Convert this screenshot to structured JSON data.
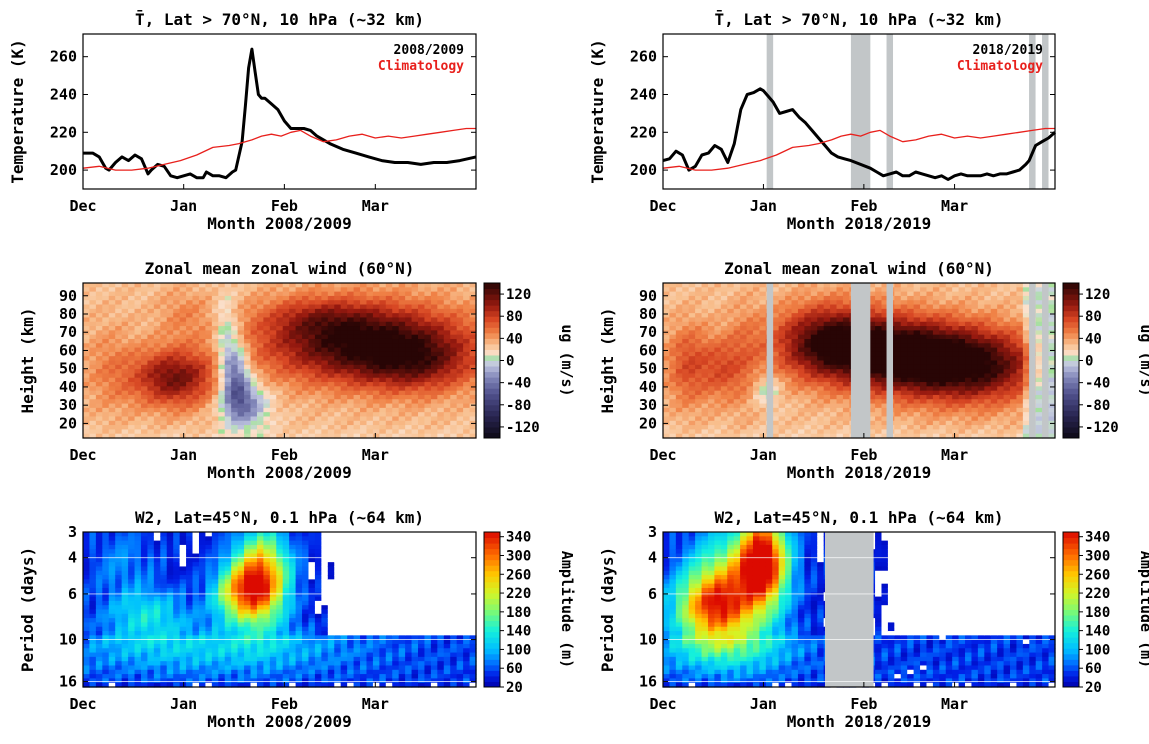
{
  "figure": {
    "panels": [
      {
        "id": "temp-2008",
        "type": "line",
        "title": "T̄, Lat > 70°N, 10 hPa (~32 km)",
        "xlabel": "Month 2008/2009",
        "ylabel": "Temperature (K)",
        "x_ticks": [
          "Dec",
          "Jan",
          "Feb",
          "Mar"
        ],
        "y_ticks": [
          200,
          220,
          240,
          260
        ],
        "ylim": [
          190,
          272
        ],
        "xlim_days": [
          0,
          121
        ],
        "legend": [
          {
            "label": "2008/2009",
            "color": "#000000"
          },
          {
            "label": "Climatology",
            "color": "#e8201c"
          }
        ],
        "series": [
          {
            "name": "2008/2009",
            "color": "#000000",
            "x": [
              0,
              3,
              5,
              7,
              8,
              10,
              12,
              14,
              16,
              18,
              20,
              21,
              23,
              25,
              27,
              29,
              31,
              33,
              35,
              37,
              38,
              40,
              42,
              44,
              46,
              47,
              49,
              50,
              51,
              52,
              53,
              54,
              55,
              56,
              58,
              60,
              62,
              64,
              66,
              68,
              70,
              72,
              76,
              80,
              84,
              88,
              92,
              96,
              100,
              104,
              108,
              112,
              116,
              121
            ],
            "y": [
              209,
              209,
              207,
              201,
              200,
              204,
              207,
              205,
              208,
              206,
              198,
              200,
              203,
              202,
              197,
              196,
              197,
              198,
              196,
              196,
              199,
              197,
              197,
              196,
              199,
              200,
              215,
              234,
              254,
              264,
              252,
              240,
              238,
              238,
              235,
              232,
              226,
              222,
              222,
              222,
              221,
              218,
              214,
              211,
              209,
              207,
              205,
              204,
              204,
              203,
              204,
              204,
              205,
              207
            ]
          },
          {
            "name": "Climatology",
            "color": "#e8201c",
            "x": [
              0,
              5,
              10,
              15,
              20,
              25,
              30,
              35,
              40,
              45,
              48,
              52,
              55,
              58,
              61,
              64,
              67,
              70,
              74,
              78,
              82,
              86,
              90,
              94,
              98,
              102,
              106,
              110,
              114,
              118,
              121
            ],
            "y": [
              201,
              202,
              200,
              200,
              201,
              203,
              205,
              208,
              212,
              213,
              214,
              216,
              218,
              219,
              218,
              220,
              221,
              218,
              215,
              216,
              218,
              219,
              217,
              218,
              217,
              218,
              219,
              220,
              221,
              222,
              222
            ]
          }
        ]
      },
      {
        "id": "temp-2018",
        "type": "line",
        "title": "T̄, Lat > 70°N, 10 hPa (~32 km)",
        "xlabel": "Month 2018/2019",
        "ylabel": "Temperature (K)",
        "x_ticks": [
          "Dec",
          "Jan",
          "Feb",
          "Mar"
        ],
        "y_ticks": [
          200,
          220,
          240,
          260
        ],
        "ylim": [
          190,
          272
        ],
        "xlim_days": [
          0,
          121
        ],
        "legend": [
          {
            "label": "2018/2019",
            "color": "#000000"
          },
          {
            "label": "Climatology",
            "color": "#e8201c"
          }
        ],
        "gaps": [
          [
            32,
            34
          ],
          [
            58,
            64
          ],
          [
            69,
            71
          ],
          [
            113,
            115
          ],
          [
            117,
            119
          ]
        ],
        "series": [
          {
            "name": "2018/2019",
            "color": "#000000",
            "x": [
              0,
              2,
              4,
              6,
              8,
              10,
              12,
              14,
              16,
              18,
              20,
              22,
              24,
              26,
              28,
              30,
              31,
              32,
              34,
              36,
              38,
              40,
              42,
              44,
              46,
              48,
              50,
              52,
              54,
              56,
              58,
              64,
              66,
              68,
              70,
              72,
              74,
              76,
              78,
              80,
              82,
              84,
              86,
              88,
              90,
              92,
              94,
              96,
              98,
              100,
              102,
              104,
              106,
              108,
              110,
              112,
              113,
              115,
              117,
              119,
              121
            ],
            "y": [
              205,
              206,
              210,
              208,
              200,
              202,
              208,
              209,
              213,
              211,
              204,
              214,
              232,
              240,
              241,
              243,
              242,
              240,
              236,
              230,
              231,
              232,
              228,
              225,
              221,
              217,
              213,
              209,
              207,
              206,
              205,
              201,
              199,
              197,
              198,
              199,
              197,
              197,
              199,
              198,
              197,
              196,
              197,
              195,
              197,
              198,
              197,
              197,
              197,
              198,
              197,
              198,
              198,
              199,
              200,
              203,
              205,
              213,
              215,
              217,
              220
            ]
          },
          {
            "name": "Climatology",
            "color": "#e8201c",
            "x": [
              0,
              5,
              10,
              15,
              20,
              25,
              30,
              35,
              40,
              45,
              48,
              52,
              55,
              58,
              61,
              64,
              67,
              70,
              74,
              78,
              82,
              86,
              90,
              94,
              98,
              102,
              106,
              110,
              114,
              118,
              121
            ],
            "y": [
              201,
              202,
              200,
              200,
              201,
              203,
              205,
              208,
              212,
              213,
              214,
              216,
              218,
              219,
              218,
              220,
              221,
              218,
              215,
              216,
              218,
              219,
              217,
              218,
              217,
              218,
              219,
              220,
              221,
              222,
              222
            ]
          }
        ]
      },
      {
        "id": "wind-2008",
        "type": "heatmap",
        "title": "Zonal mean zonal wind (60°N)",
        "xlabel": "Month 2008/2009",
        "ylabel": "Height (km)",
        "x_ticks": [
          "Dec",
          "Jan",
          "Feb",
          "Mar"
        ],
        "y_ticks": [
          20,
          30,
          40,
          50,
          60,
          70,
          80,
          90
        ],
        "ylim": [
          12,
          97
        ],
        "xlim_days": [
          0,
          121
        ],
        "colorbar": {
          "label": "ug (m/s)",
          "ticks": [
            -120,
            -80,
            -40,
            0,
            40,
            80,
            120
          ],
          "range": [
            -140,
            140
          ]
        },
        "features": [
          {
            "x": 8,
            "y": 50,
            "sx": 6,
            "sy": 18,
            "a": 20
          },
          {
            "x": 28,
            "y": 45,
            "sx": 9,
            "sy": 11,
            "a": 85
          },
          {
            "x": 31,
            "y": 80,
            "sx": 6,
            "sy": 10,
            "a": 18
          },
          {
            "x": 47,
            "y": 46,
            "sx": 3,
            "sy": 13,
            "a": -75
          },
          {
            "x": 50,
            "y": 30,
            "sx": 5,
            "sy": 9,
            "a": -60
          },
          {
            "x": 44,
            "y": 68,
            "sx": 2.5,
            "sy": 16,
            "a": -35
          },
          {
            "x": 87,
            "y": 64,
            "sx": 22,
            "sy": 15,
            "a": 115
          },
          {
            "x": 103,
            "y": 52,
            "sx": 12,
            "sy": 11,
            "a": 45
          },
          {
            "x": 72,
            "y": 78,
            "sx": 12,
            "sy": 8,
            "a": 30
          }
        ]
      },
      {
        "id": "wind-2018",
        "type": "heatmap",
        "title": "Zonal mean zonal wind (60°N)",
        "xlabel": "Month 2018/2019",
        "ylabel": "Height (km)",
        "x_ticks": [
          "Dec",
          "Jan",
          "Feb",
          "Mar"
        ],
        "y_ticks": [
          20,
          30,
          40,
          50,
          60,
          70,
          80,
          90
        ],
        "ylim": [
          12,
          97
        ],
        "xlim_days": [
          0,
          121
        ],
        "colorbar": {
          "label": "ug (m/s)",
          "ticks": [
            -120,
            -80,
            -40,
            0,
            40,
            80,
            120
          ],
          "range": [
            -140,
            140
          ]
        },
        "gaps": [
          [
            32,
            34
          ],
          [
            58,
            64
          ],
          [
            69,
            71
          ],
          [
            113,
            115
          ],
          [
            117,
            119
          ]
        ],
        "features": [
          {
            "x": 8,
            "y": 52,
            "sx": 5,
            "sy": 16,
            "a": 45
          },
          {
            "x": 18,
            "y": 50,
            "sx": 4,
            "sy": 12,
            "a": 35
          },
          {
            "x": 25,
            "y": 55,
            "sx": 4,
            "sy": 20,
            "a": 25
          },
          {
            "x": 32,
            "y": 38,
            "sx": 3,
            "sy": 6,
            "a": -30
          },
          {
            "x": 52,
            "y": 64,
            "sx": 12,
            "sy": 14,
            "a": 115
          },
          {
            "x": 75,
            "y": 57,
            "sx": 13,
            "sy": 14,
            "a": 115
          },
          {
            "x": 97,
            "y": 52,
            "sx": 14,
            "sy": 14,
            "a": 105
          },
          {
            "x": 118,
            "y": 48,
            "sx": 3,
            "sy": 20,
            "a": -40
          }
        ]
      },
      {
        "id": "w2-2008",
        "type": "heatmap",
        "title": "W2, Lat=45°N, 0.1 hPa (~64 km)",
        "xlabel": "Month 2008/2009",
        "ylabel": "Period (days)",
        "x_ticks": [
          "Dec",
          "Jan",
          "Feb",
          "Mar"
        ],
        "y_ticks": [
          3,
          4,
          6,
          10,
          16
        ],
        "ylim": [
          3,
          17
        ],
        "xlim_days": [
          0,
          121
        ],
        "colorbar": {
          "label": "Amplitude (m)",
          "ticks": [
            20,
            60,
            100,
            140,
            180,
            220,
            260,
            300,
            340
          ],
          "range": [
            20,
            350
          ]
        },
        "features": [
          {
            "x": 55,
            "y": 5.0,
            "sx": 6,
            "sy": 0.35,
            "a": 260
          },
          {
            "x": 48,
            "y": 6.0,
            "sx": 6,
            "sy": 0.22,
            "a": 160
          },
          {
            "x": 20,
            "y": 7.5,
            "sx": 9,
            "sy": 0.2,
            "a": 80
          },
          {
            "x": 40,
            "y": 11,
            "sx": 30,
            "sy": 0.2,
            "a": 60
          },
          {
            "x": 12,
            "y": 4.2,
            "sx": 8,
            "sy": 0.3,
            "a": 40
          }
        ]
      },
      {
        "id": "w2-2018",
        "type": "heatmap",
        "title": "W2, Lat=45°N, 0.1 hPa (~64 km)",
        "xlabel": "Month 2018/2019",
        "ylabel": "Period (days)",
        "x_ticks": [
          "Dec",
          "Jan",
          "Feb",
          "Mar"
        ],
        "y_ticks": [
          3,
          4,
          6,
          10,
          16
        ],
        "ylim": [
          3,
          17
        ],
        "xlim_days": [
          0,
          121
        ],
        "colorbar": {
          "label": "Amplitude (m)",
          "ticks": [
            20,
            60,
            100,
            140,
            180,
            220,
            260,
            300,
            340
          ],
          "range": [
            20,
            350
          ]
        },
        "gaps": [
          [
            50,
            65
          ]
        ],
        "features": [
          {
            "x": 31,
            "y": 4.0,
            "sx": 5,
            "sy": 0.35,
            "a": 280
          },
          {
            "x": 22,
            "y": 5.2,
            "sx": 10,
            "sy": 0.4,
            "a": 170
          },
          {
            "x": 15,
            "y": 7.0,
            "sx": 8,
            "sy": 0.25,
            "a": 200
          },
          {
            "x": 20,
            "y": 11,
            "sx": 14,
            "sy": 0.2,
            "a": 80
          }
        ]
      }
    ]
  }
}
